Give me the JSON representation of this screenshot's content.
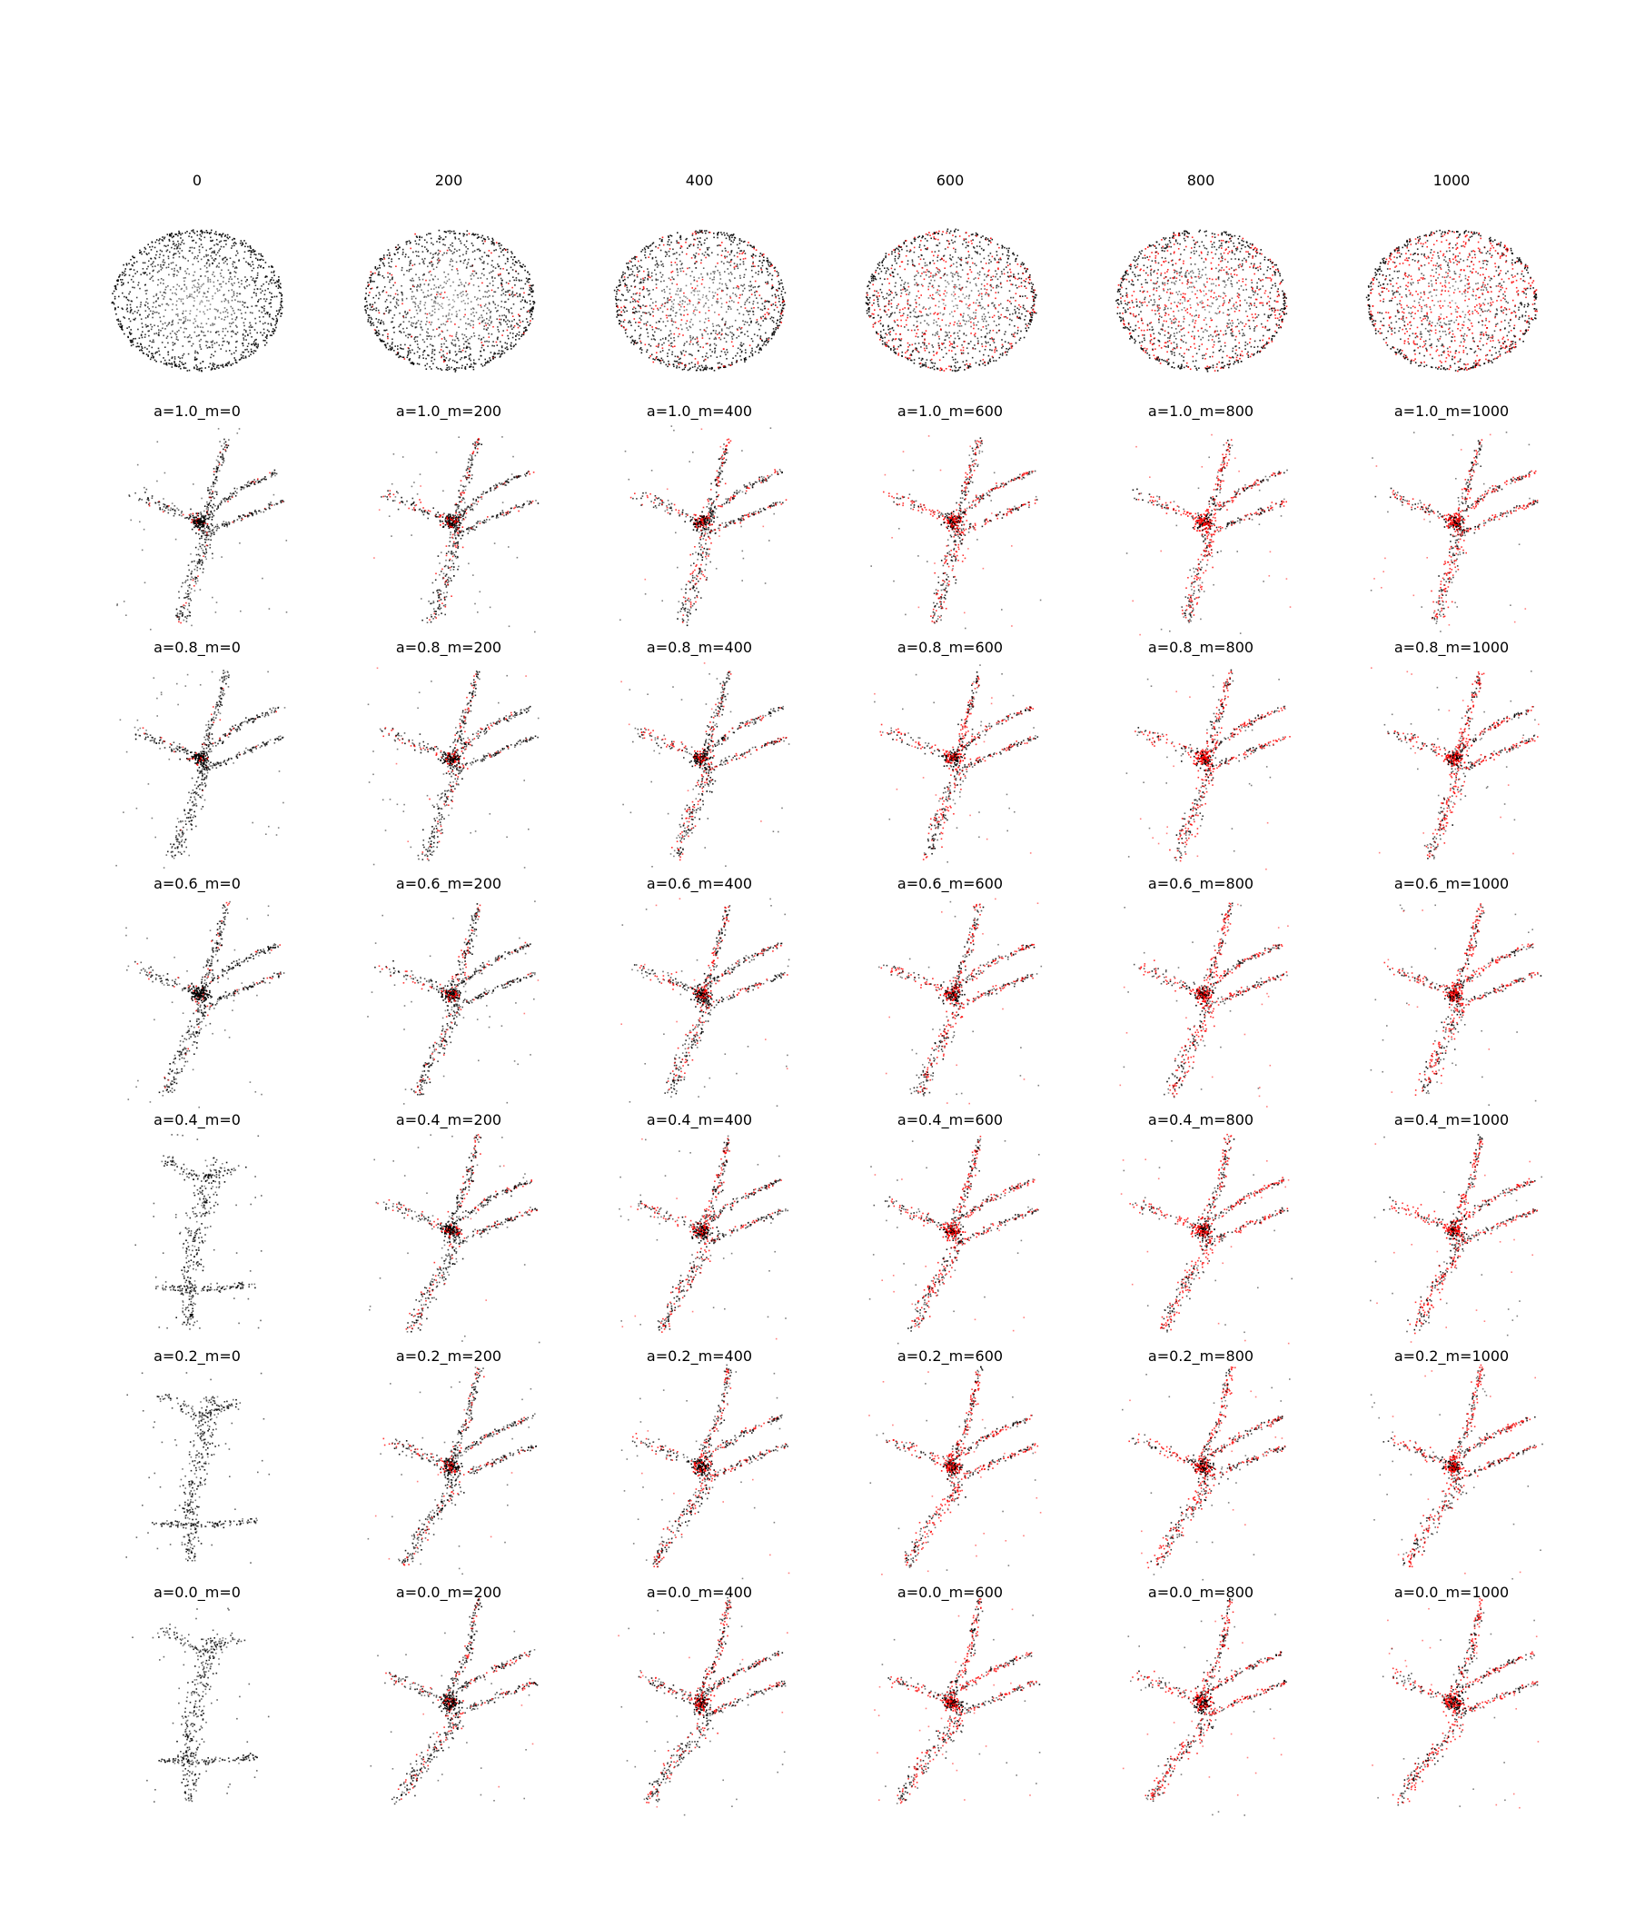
{
  "figure": {
    "top_row_labels": [
      "0",
      "200",
      "400",
      "600",
      "800",
      "1000"
    ],
    "grid_labels": [
      [
        "a=1.0_m=0",
        "a=1.0_m=200",
        "a=1.0_m=400",
        "a=1.0_m=600",
        "a=1.0_m=800",
        "a=1.0_m=1000"
      ],
      [
        "a=0.8_m=0",
        "a=0.8_m=200",
        "a=0.8_m=400",
        "a=0.8_m=600",
        "a=0.8_m=800",
        "a=0.8_m=1000"
      ],
      [
        "a=0.6_m=0",
        "a=0.6_m=200",
        "a=0.6_m=400",
        "a=0.6_m=600",
        "a=0.6_m=800",
        "a=0.6_m=1000"
      ],
      [
        "a=0.4_m=0",
        "a=0.4_m=200",
        "a=0.4_m=400",
        "a=0.4_m=600",
        "a=0.4_m=800",
        "a=0.4_m=1000"
      ],
      [
        "a=0.2_m=0",
        "a=0.2_m=200",
        "a=0.2_m=400",
        "a=0.2_m=600",
        "a=0.2_m=800",
        "a=0.2_m=1000"
      ],
      [
        "a=0.0_m=0",
        "a=0.0_m=200",
        "a=0.0_m=400",
        "a=0.0_m=600",
        "a=0.0_m=800",
        "a=0.0_m=1000"
      ]
    ],
    "colors": {
      "point": "#000000",
      "highlight": "#ff0000"
    }
  }
}
